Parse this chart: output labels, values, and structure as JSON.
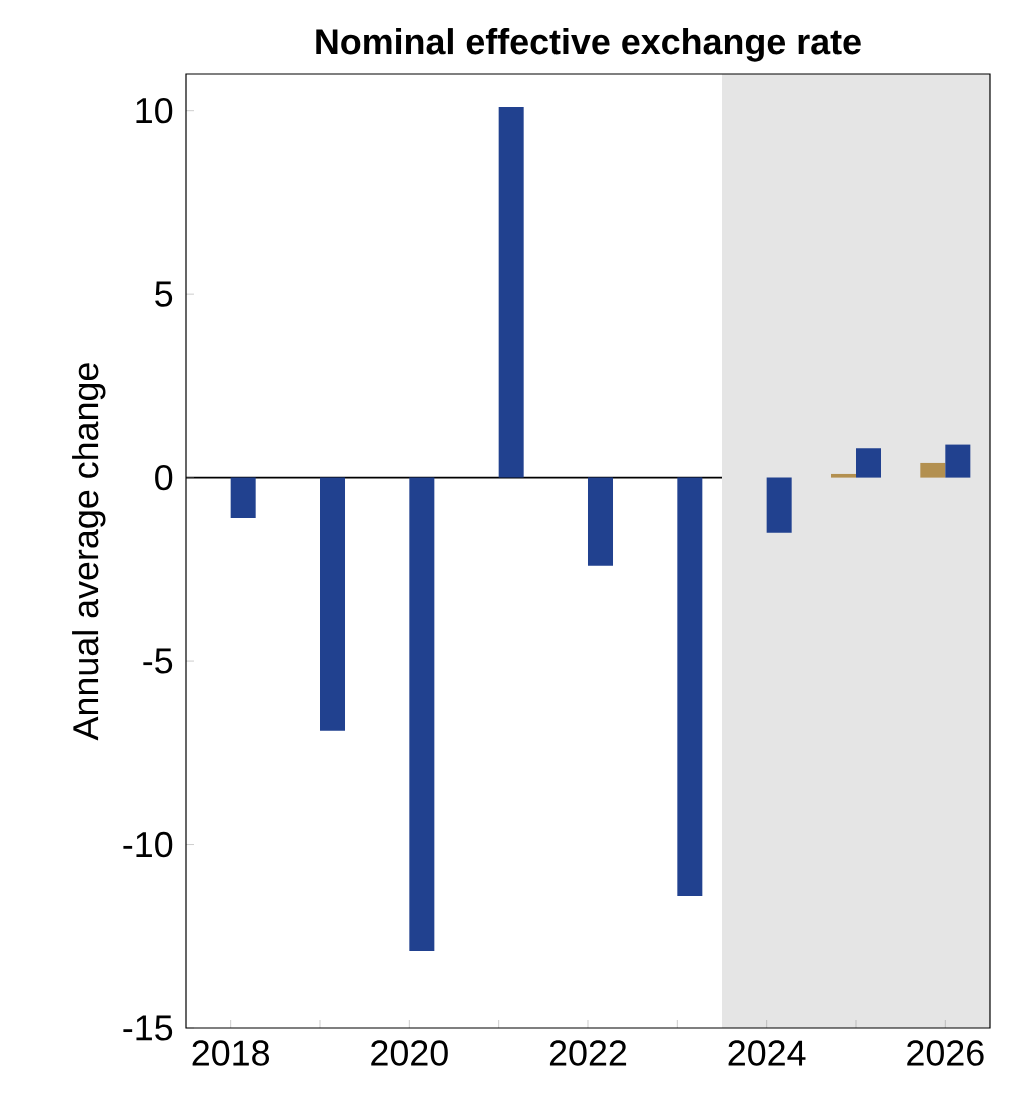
{
  "chart_data": {
    "type": "bar",
    "title": "Nominal effective exchange rate",
    "ylabel": "Annual average change",
    "x": [
      2018,
      2019,
      2020,
      2021,
      2022,
      2023,
      2024,
      2025,
      2026
    ],
    "series": [
      {
        "color": "#b39050",
        "values": [
          null,
          null,
          null,
          null,
          null,
          null,
          null,
          0.1,
          0.4
        ]
      },
      {
        "color": "#21418f",
        "values": [
          -1.1,
          -6.9,
          -12.9,
          10.1,
          -2.4,
          -11.4,
          -1.5,
          0.8,
          0.9
        ]
      }
    ],
    "xlim": [
      2017.5,
      2026.5
    ],
    "xticks": [
      2018,
      {
        "value": 2019,
        "label": null
      },
      2020,
      {
        "value": 2021,
        "label": null
      },
      2022,
      {
        "value": 2023,
        "label": null
      },
      2024,
      {
        "value": 2025,
        "label": null
      },
      2026
    ],
    "ylim": [
      -15,
      11
    ],
    "yticks": [
      -15,
      -10,
      -5,
      0,
      5,
      10
    ],
    "ref_lines": [
      {
        "axis": "y",
        "value": 0,
        "color": "#000000"
      }
    ],
    "bands": [
      {
        "axis": "x",
        "from": 2023.5,
        "to": 2026.5,
        "color": "#e5e5e5"
      }
    ],
    "grid": false
  }
}
